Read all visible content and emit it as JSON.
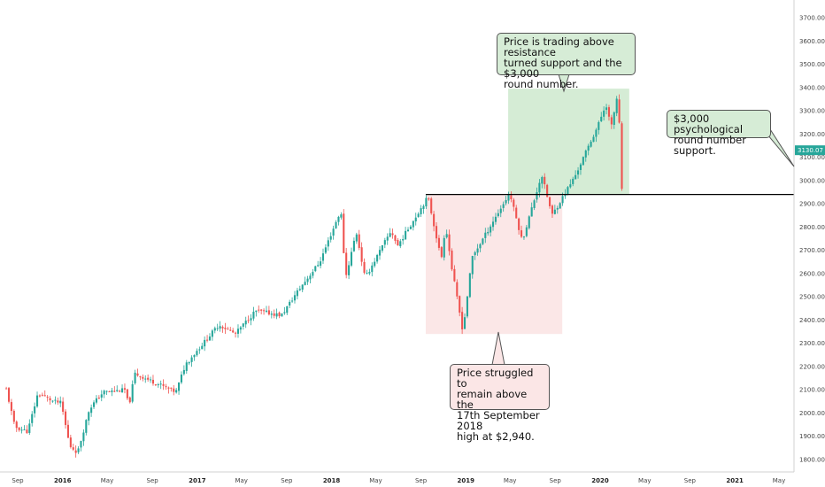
{
  "colors": {
    "up": "#26a69a",
    "down": "#ef5350",
    "green_zone": "#d5ecd5",
    "red_zone": "#fbe7e7",
    "price_tag": "#26a69a",
    "level_line": "#000000"
  },
  "annotations": {
    "top": "Price is trading above resistance\nturned support and the $3,000\nround number.",
    "bottom": "Price struggled to\nremain above the\n17th September 2018\nhigh at $2,940.",
    "right": "$3,000 psychological\nround number support."
  },
  "chart_data": {
    "type": "candlestick",
    "interval": "weekly",
    "ylim": [
      1760,
      3790
    ],
    "y_ticks": [
      "3700.00",
      "3600.00",
      "3500.00",
      "3400.00",
      "3300.00",
      "3200.00",
      "3100.00",
      "3000.00",
      "2900.00",
      "2800.00",
      "2700.00",
      "2600.00",
      "2500.00",
      "2400.00",
      "2300.00",
      "2200.00",
      "2100.00",
      "2000.00",
      "1900.00",
      "1800.00"
    ],
    "x_ticks": [
      "Sep",
      "2016",
      "May",
      "Sep",
      "2017",
      "May",
      "Sep",
      "2018",
      "May",
      "Sep",
      "2019",
      "May",
      "Sep",
      "2020",
      "May",
      "Sep",
      "2021",
      "May"
    ],
    "last_price_label": "3130.07",
    "last_price": 3130.07,
    "support_level": 2940,
    "green_zone": {
      "y_range": [
        2940,
        3395
      ]
    },
    "red_zone": {
      "y_range": [
        2340,
        2940
      ]
    },
    "close_path": [
      [
        "2015-08-01",
        2103
      ],
      [
        "2015-08-24",
        1940
      ],
      [
        "2015-09-28",
        1920
      ],
      [
        "2015-10-26",
        2085
      ],
      [
        "2015-12-07",
        2050
      ],
      [
        "2015-12-28",
        2043
      ],
      [
        "2016-01-20",
        1860
      ],
      [
        "2016-02-11",
        1830
      ],
      [
        "2016-03-14",
        2020
      ],
      [
        "2016-04-20",
        2090
      ],
      [
        "2016-06-23",
        2100
      ],
      [
        "2016-06-27",
        2010
      ],
      [
        "2016-07-15",
        2170
      ],
      [
        "2016-09-09",
        2130
      ],
      [
        "2016-11-04",
        2090
      ],
      [
        "2016-11-30",
        2210
      ],
      [
        "2017-03-01",
        2380
      ],
      [
        "2017-04-14",
        2340
      ],
      [
        "2017-06-09",
        2440
      ],
      [
        "2017-08-18",
        2420
      ],
      [
        "2017-09-29",
        2520
      ],
      [
        "2017-11-30",
        2650
      ],
      [
        "2018-01-26",
        2872
      ],
      [
        "2018-02-08",
        2580
      ],
      [
        "2018-03-09",
        2780
      ],
      [
        "2018-04-02",
        2580
      ],
      [
        "2018-06-12",
        2785
      ],
      [
        "2018-06-29",
        2718
      ],
      [
        "2018-09-20",
        2930
      ],
      [
        "2018-10-26",
        2660
      ],
      [
        "2018-11-07",
        2810
      ],
      [
        "2018-11-23",
        2630
      ],
      [
        "2018-12-24",
        2350
      ],
      [
        "2019-01-18",
        2670
      ],
      [
        "2019-03-15",
        2822
      ],
      [
        "2019-04-30",
        2946
      ],
      [
        "2019-06-03",
        2740
      ],
      [
        "2019-07-26",
        3025
      ],
      [
        "2019-08-23",
        2850
      ],
      [
        "2019-10-25",
        3020
      ],
      [
        "2019-12-27",
        3240
      ],
      [
        "2020-01-17",
        3330
      ],
      [
        "2020-01-31",
        3226
      ],
      [
        "2020-02-19",
        3386
      ],
      [
        "2020-02-28",
        2954
      ],
      [
        "2020-03-06",
        2972
      ]
    ]
  }
}
